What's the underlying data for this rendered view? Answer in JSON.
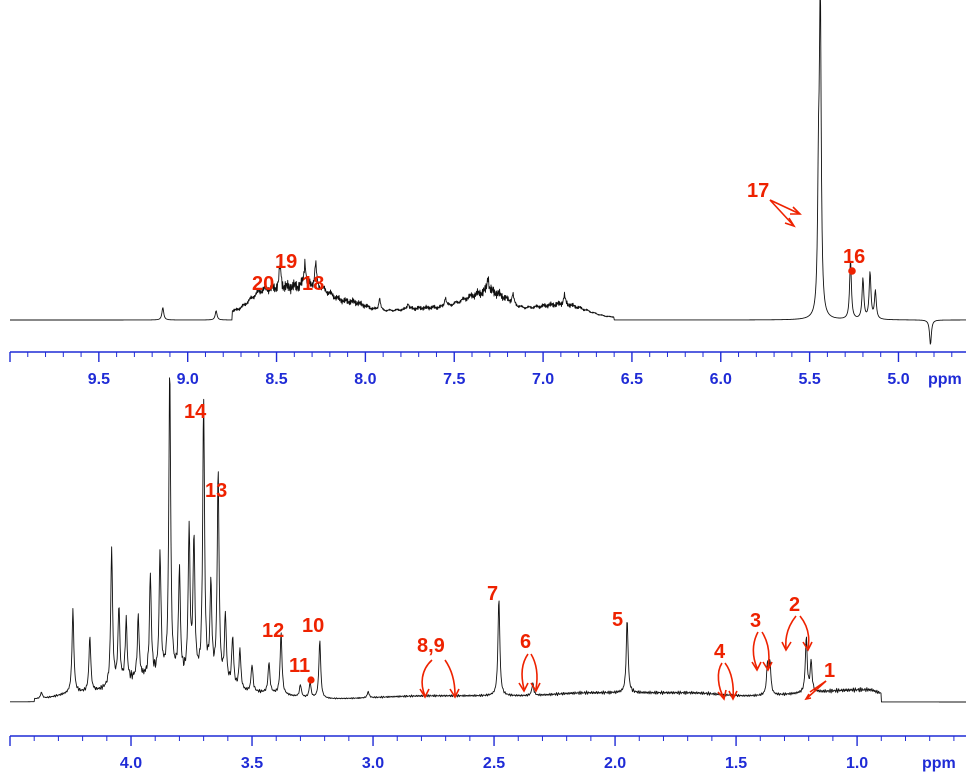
{
  "chart_data": [
    {
      "type": "line",
      "panel": "upper",
      "x_unit": "ppm",
      "xlim": [
        10.0,
        4.62
      ],
      "x_reversed": true,
      "ticks": [
        9.5,
        9.0,
        8.5,
        8.0,
        7.5,
        7.0,
        6.5,
        6.0,
        5.5,
        5.0
      ],
      "tick_labels": [
        "9.5",
        "9.0",
        "8.5",
        "8.0",
        "7.5",
        "7.0",
        "6.5",
        "6.0",
        "5.5",
        "5.0"
      ],
      "baseline_hump": [
        [
          8.75,
          0.03
        ],
        [
          8.55,
          0.1
        ],
        [
          8.3,
          0.11
        ],
        [
          8.1,
          0.06
        ],
        [
          7.9,
          0.03
        ],
        [
          7.6,
          0.04
        ],
        [
          7.3,
          0.09
        ],
        [
          7.1,
          0.04
        ],
        [
          6.9,
          0.05
        ],
        [
          6.6,
          0.01
        ]
      ],
      "peaks": [
        {
          "ppm": 9.14,
          "height": 0.04
        },
        {
          "ppm": 8.84,
          "height": 0.03
        },
        {
          "ppm": 8.48,
          "height": 0.08
        },
        {
          "ppm": 8.34,
          "height": 0.08
        },
        {
          "ppm": 8.28,
          "height": 0.07
        },
        {
          "ppm": 7.92,
          "height": 0.04
        },
        {
          "ppm": 7.76,
          "height": 0.02
        },
        {
          "ppm": 7.55,
          "height": 0.03
        },
        {
          "ppm": 7.31,
          "height": 0.05
        },
        {
          "ppm": 7.17,
          "height": 0.03
        },
        {
          "ppm": 6.88,
          "height": 0.03
        },
        {
          "ppm": 5.44,
          "height": 1.0
        },
        {
          "ppm": 5.45,
          "height": 0.38
        },
        {
          "ppm": 5.27,
          "height": 0.19
        },
        {
          "ppm": 5.2,
          "height": 0.13
        },
        {
          "ppm": 5.16,
          "height": 0.15
        },
        {
          "ppm": 5.13,
          "height": 0.09
        },
        {
          "ppm": 4.82,
          "height": -0.08
        }
      ],
      "annotations": [
        {
          "label": "20",
          "ppm": 8.52
        },
        {
          "label": "19",
          "ppm": 8.38
        },
        {
          "label": "18",
          "ppm": 8.26
        },
        {
          "label": "17",
          "ppm": 5.58
        },
        {
          "label": "16",
          "ppm": 5.12
        }
      ]
    },
    {
      "type": "line",
      "panel": "lower",
      "x_unit": "ppm",
      "xlim": [
        4.5,
        0.55
      ],
      "x_reversed": true,
      "ticks": [
        4.0,
        3.5,
        3.0,
        2.5,
        2.0,
        1.5,
        1.0
      ],
      "tick_labels": [
        "4.0",
        "3.5",
        "3.0",
        "2.5",
        "2.0",
        "1.5",
        "1.0"
      ],
      "baseline_hump": [
        [
          4.4,
          0.01
        ],
        [
          4.2,
          0.03
        ],
        [
          3.9,
          0.08
        ],
        [
          3.7,
          0.07
        ],
        [
          3.5,
          0.03
        ],
        [
          3.2,
          0.01
        ],
        [
          2.75,
          0.02
        ],
        [
          2.4,
          0.02
        ],
        [
          2.1,
          0.03
        ],
        [
          1.7,
          0.03
        ],
        [
          1.45,
          0.02
        ],
        [
          0.95,
          0.04
        ],
        [
          0.9,
          0.03
        ]
      ],
      "peaks": [
        {
          "ppm": 4.37,
          "height": 0.02
        },
        {
          "ppm": 4.24,
          "height": 0.27
        },
        {
          "ppm": 4.17,
          "height": 0.18
        },
        {
          "ppm": 4.08,
          "height": 0.45
        },
        {
          "ppm": 4.05,
          "height": 0.25
        },
        {
          "ppm": 4.02,
          "height": 0.2
        },
        {
          "ppm": 3.97,
          "height": 0.2
        },
        {
          "ppm": 3.92,
          "height": 0.33
        },
        {
          "ppm": 3.88,
          "height": 0.4
        },
        {
          "ppm": 3.84,
          "height": 1.0
        },
        {
          "ppm": 3.8,
          "height": 0.35
        },
        {
          "ppm": 3.76,
          "height": 0.48
        },
        {
          "ppm": 3.74,
          "height": 0.45
        },
        {
          "ppm": 3.7,
          "height": 0.9
        },
        {
          "ppm": 3.67,
          "height": 0.3
        },
        {
          "ppm": 3.64,
          "height": 0.68
        },
        {
          "ppm": 3.61,
          "height": 0.22
        },
        {
          "ppm": 3.58,
          "height": 0.16
        },
        {
          "ppm": 3.55,
          "height": 0.13
        },
        {
          "ppm": 3.5,
          "height": 0.09
        },
        {
          "ppm": 3.43,
          "height": 0.1
        },
        {
          "ppm": 3.38,
          "height": 0.2
        },
        {
          "ppm": 3.3,
          "height": 0.04
        },
        {
          "ppm": 3.26,
          "height": 0.05
        },
        {
          "ppm": 3.22,
          "height": 0.19
        },
        {
          "ppm": 3.02,
          "height": 0.02
        },
        {
          "ppm": 2.48,
          "height": 0.32
        },
        {
          "ppm": 2.34,
          "height": 0.04
        },
        {
          "ppm": 1.95,
          "height": 0.24
        },
        {
          "ppm": 1.37,
          "height": 0.1
        },
        {
          "ppm": 1.36,
          "height": 0.1
        },
        {
          "ppm": 1.21,
          "height": 0.18
        },
        {
          "ppm": 1.19,
          "height": 0.1
        }
      ],
      "annotations": [
        {
          "label": "14",
          "ppm": 3.7
        },
        {
          "label": "13",
          "ppm": 3.64
        },
        {
          "label": "12",
          "ppm": 3.37
        },
        {
          "label": "11",
          "ppm": 3.25
        },
        {
          "label": "10",
          "ppm": 3.22
        },
        {
          "label": "8,9",
          "ppm": 2.7
        },
        {
          "label": "7",
          "ppm": 2.48
        },
        {
          "label": "6",
          "ppm": 2.34
        },
        {
          "label": "5",
          "ppm": 1.95
        },
        {
          "label": "4",
          "ppm": 1.5
        },
        {
          "label": "3",
          "ppm": 1.36
        },
        {
          "label": "2",
          "ppm": 1.2
        },
        {
          "label": "1",
          "ppm": 1.15
        }
      ]
    }
  ]
}
